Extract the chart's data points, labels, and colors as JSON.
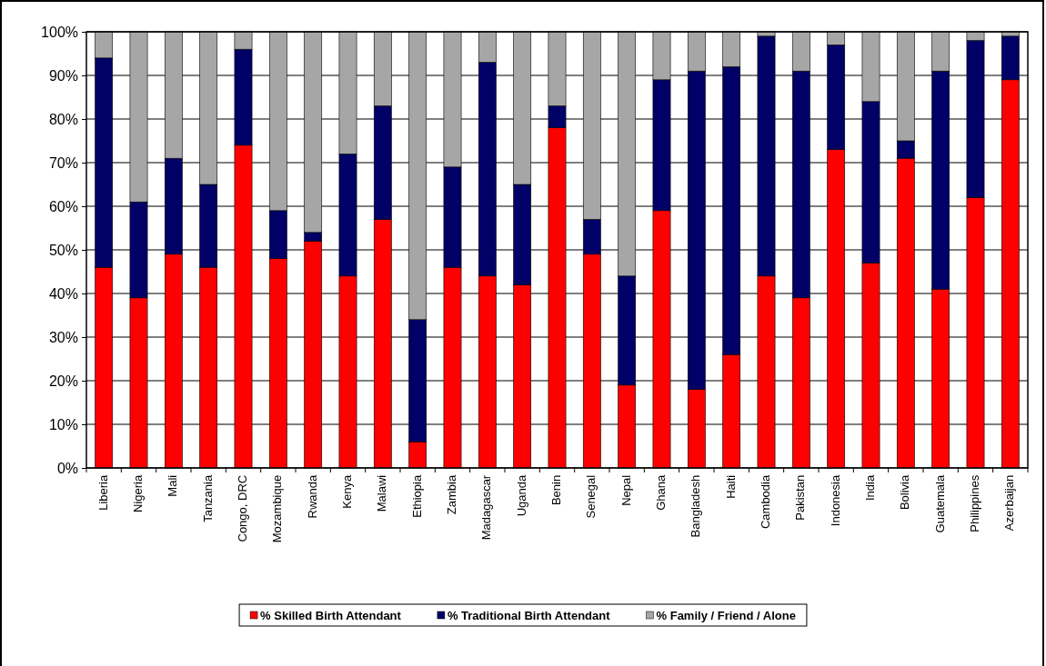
{
  "chart_data": {
    "type": "bar",
    "stacked": true,
    "categories": [
      "Liberia",
      "Nigeria",
      "Mali",
      "Tanzania",
      "Congo, DRC",
      "Mozambique",
      "Rwanda",
      "Kenya",
      "Malawi",
      "Ethiopia",
      "Zambia",
      "Madagascar",
      "Uganda",
      "Benin",
      "Senegal",
      "Nepal",
      "Ghana",
      "Bangladesh",
      "Haiti",
      "Cambodia",
      "Pakistan",
      "Indonesia",
      "India",
      "Bolivia",
      "Guatemala",
      "Philippines",
      "Azerbaijan"
    ],
    "series": [
      {
        "name": "% Skilled Birth Attendant",
        "color": "#ff0000",
        "values": [
          46,
          39,
          49,
          46,
          74,
          48,
          52,
          44,
          57,
          6,
          46,
          44,
          42,
          78,
          49,
          19,
          59,
          18,
          26,
          44,
          39,
          73,
          47,
          71,
          41,
          62,
          89
        ]
      },
      {
        "name": "% Traditional Birth Attendant",
        "color": "#000066",
        "values": [
          48,
          22,
          22,
          19,
          22,
          11,
          2,
          28,
          26,
          28,
          23,
          49,
          23,
          5,
          8,
          25,
          30,
          73,
          66,
          55,
          52,
          24,
          37,
          4,
          50,
          36,
          10
        ]
      },
      {
        "name": "% Family / Friend / Alone",
        "color": "#a6a6a6",
        "values": [
          6,
          39,
          29,
          35,
          4,
          41,
          46,
          28,
          17,
          66,
          31,
          7,
          35,
          17,
          43,
          56,
          11,
          9,
          8,
          1,
          9,
          3,
          16,
          25,
          9,
          2,
          1
        ]
      }
    ],
    "ylim": [
      0,
      100
    ],
    "yticks": [
      {
        "value": 0,
        "label": "0%"
      },
      {
        "value": 10,
        "label": "10%"
      },
      {
        "value": 20,
        "label": "20%"
      },
      {
        "value": 30,
        "label": "30%"
      },
      {
        "value": 40,
        "label": "40%"
      },
      {
        "value": 50,
        "label": "50%"
      },
      {
        "value": 60,
        "label": "60%"
      },
      {
        "value": 70,
        "label": "70%"
      },
      {
        "value": 80,
        "label": "80%"
      },
      {
        "value": 90,
        "label": "90%"
      },
      {
        "value": 100,
        "label": "100%"
      }
    ],
    "grid": "y",
    "legend": "bottom"
  }
}
